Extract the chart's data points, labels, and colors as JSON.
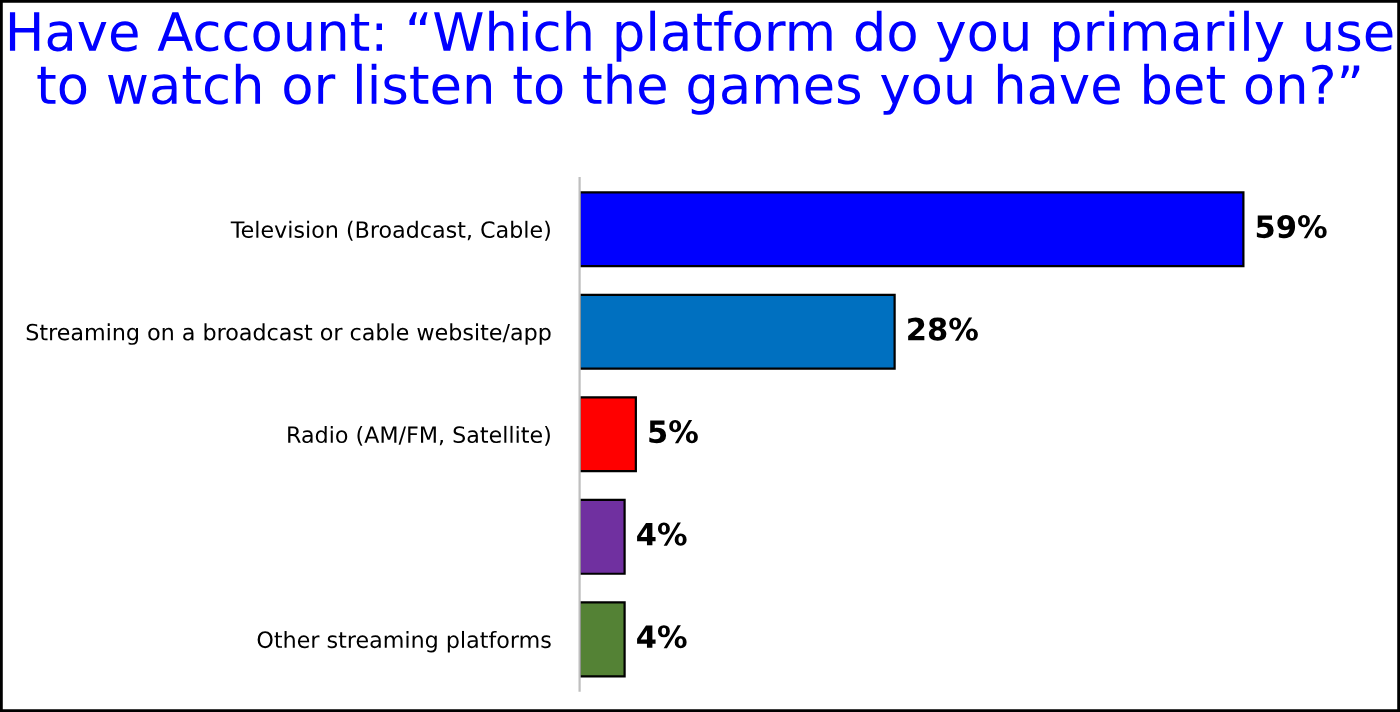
{
  "chart_data": {
    "type": "bar",
    "orientation": "horizontal",
    "title": "Have Account: “Which platform do you primarily use\nto watch or listen to the games you have bet on?”",
    "categories": [
      "Television (Broadcast, Cable)",
      "Streaming on a broadcast or cable website/app",
      "Radio (AM/FM, Satellite)",
      null,
      "Other streaming platforms"
    ],
    "values": [
      59,
      28,
      5,
      4,
      4
    ],
    "colors": [
      "#0000ff",
      "#0070c0",
      "#ff0000",
      "#7030a0",
      "#548235"
    ],
    "value_labels": [
      "59%",
      "28%",
      "5%",
      "4%",
      "4%"
    ],
    "grid": false,
    "legend": false
  }
}
